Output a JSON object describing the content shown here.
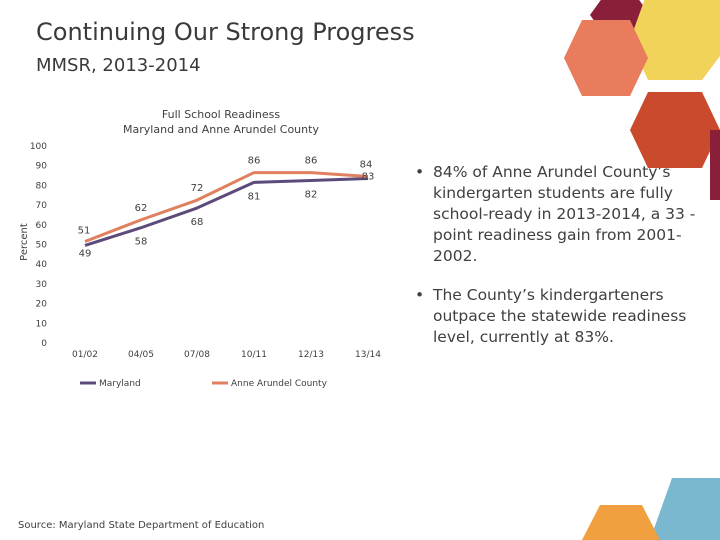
{
  "slide": {
    "title": "Continuing Our Strong Progress",
    "subtitle": "MMSR, 2013-2014",
    "bullets": [
      "84% of Anne Arundel County’s kindergarten students are fully school-ready in 2013-2014, a 33 -point readiness gain from 2001-2002.",
      "The County’s kindergarteners outpace the statewide readiness level, currently at 83%."
    ],
    "source": "Source: Maryland State Department of Education"
  },
  "chart_data": {
    "type": "line",
    "title": "Full School Readiness",
    "subtitle": "Maryland and Anne Arundel County",
    "xlabel": "",
    "ylabel": "Percent",
    "categories": [
      "01/02",
      "04/05",
      "07/08",
      "10/11",
      "12/13",
      "13/14"
    ],
    "ylim": [
      0,
      100
    ],
    "yticks": [
      0,
      10,
      20,
      30,
      40,
      50,
      60,
      70,
      80,
      90,
      100
    ],
    "grid": false,
    "legend_position": "bottom",
    "series": [
      {
        "name": "Maryland",
        "color": "#5c4a7a",
        "values": [
          49,
          58,
          68,
          81,
          82,
          83
        ]
      },
      {
        "name": "Anne Arundel County",
        "color": "#e0805e",
        "values": [
          51,
          62,
          72,
          86,
          86,
          84
        ]
      }
    ]
  },
  "decoration": {
    "colors": [
      "#8a1f3a",
      "#f2d35a",
      "#e87c5c",
      "#c94a2c",
      "#f0a03e",
      "#7ab8d0"
    ]
  }
}
